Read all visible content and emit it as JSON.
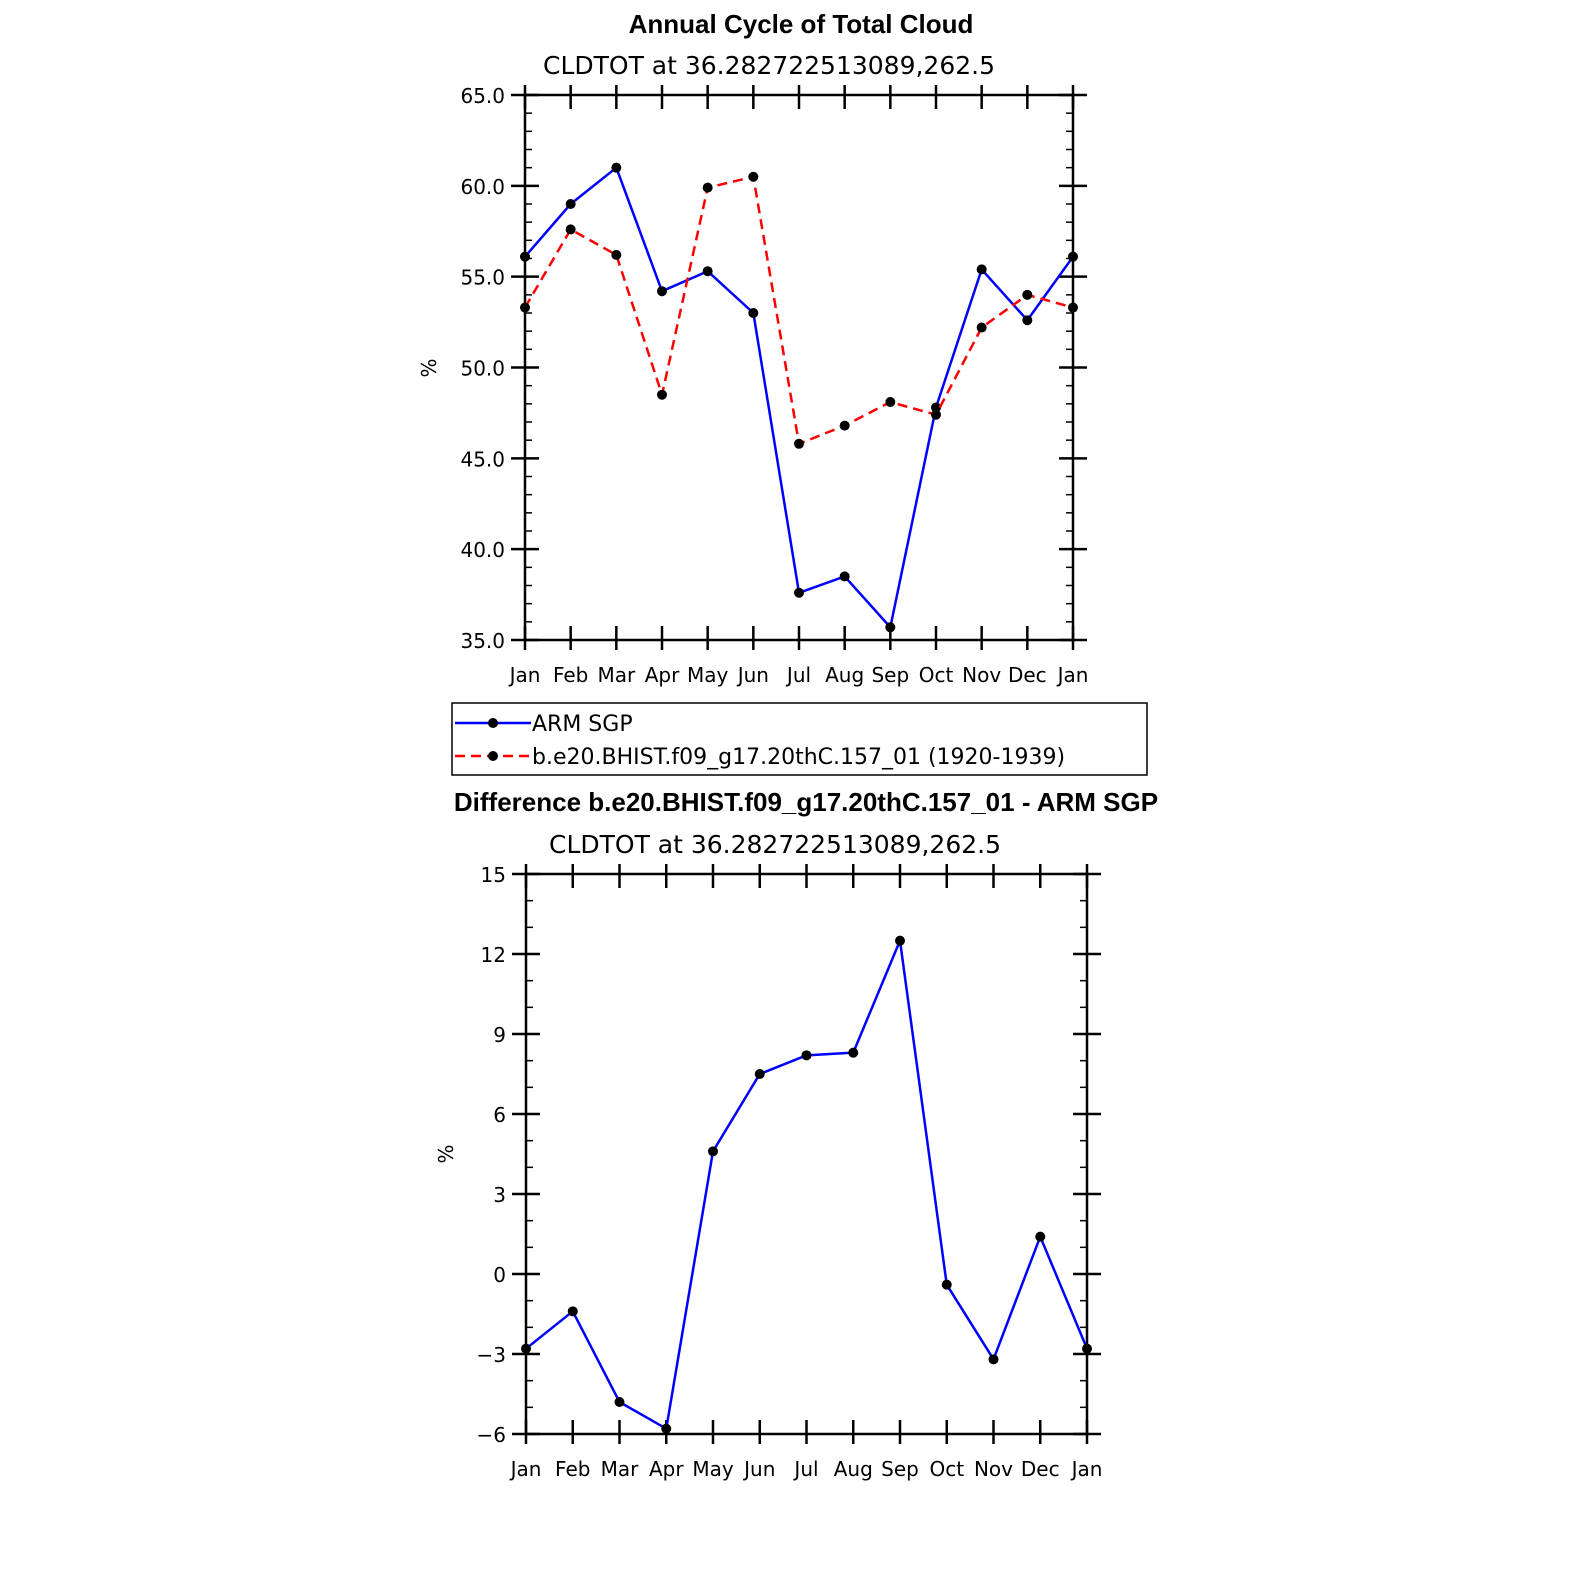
{
  "chart_data": [
    {
      "type": "line",
      "title": "Annual Cycle of Total Cloud",
      "subtitle": "CLDTOT at 36.282722513089,262.5",
      "ylabel": "%",
      "xlabel": "",
      "ylim": [
        35,
        65
      ],
      "ytick_values": [
        35,
        40,
        45,
        50,
        55,
        60,
        65
      ],
      "ytick_labels": [
        "35.0",
        "40.0",
        "45.0",
        "50.0",
        "55.0",
        "60.0",
        "65.0"
      ],
      "categories": [
        "Jan",
        "Feb",
        "Mar",
        "Apr",
        "May",
        "Jun",
        "Jul",
        "Aug",
        "Sep",
        "Oct",
        "Nov",
        "Dec",
        "Jan"
      ],
      "grid": false,
      "legend": "below",
      "series": [
        {
          "name": "ARM SGP",
          "color": "#0000ff",
          "dash": "solid",
          "values": [
            56.1,
            59.0,
            61.0,
            54.2,
            55.3,
            53.0,
            37.6,
            38.5,
            35.7,
            47.8,
            55.4,
            52.6,
            56.1
          ]
        },
        {
          "name": "b.e20.BHIST.f09_g17.20thC.157_01 (1920-1939)",
          "color": "#ff0000",
          "dash": "dashed",
          "values": [
            53.3,
            57.6,
            56.2,
            48.5,
            59.9,
            60.5,
            45.8,
            46.8,
            48.1,
            47.4,
            52.2,
            54.0,
            53.3
          ]
        }
      ]
    },
    {
      "type": "line",
      "title": "Difference b.e20.BHIST.f09_g17.20thC.157_01 - ARM SGP",
      "subtitle": "CLDTOT at 36.282722513089,262.5",
      "ylabel": "%",
      "xlabel": "",
      "ylim": [
        -6,
        15
      ],
      "ytick_values": [
        -6,
        -3,
        0,
        3,
        6,
        9,
        12,
        15
      ],
      "ytick_labels": [
        "−6",
        "−3",
        "0",
        "3",
        "6",
        "9",
        "12",
        "15"
      ],
      "categories": [
        "Jan",
        "Feb",
        "Mar",
        "Apr",
        "May",
        "Jun",
        "Jul",
        "Aug",
        "Sep",
        "Oct",
        "Nov",
        "Dec",
        "Jan"
      ],
      "grid": false,
      "series": [
        {
          "color": "#0000ff",
          "dash": "solid",
          "values": [
            -2.8,
            -1.4,
            -4.8,
            -5.8,
            4.6,
            7.5,
            8.2,
            8.3,
            12.5,
            -0.4,
            -3.2,
            1.4,
            -2.8
          ]
        }
      ]
    }
  ]
}
